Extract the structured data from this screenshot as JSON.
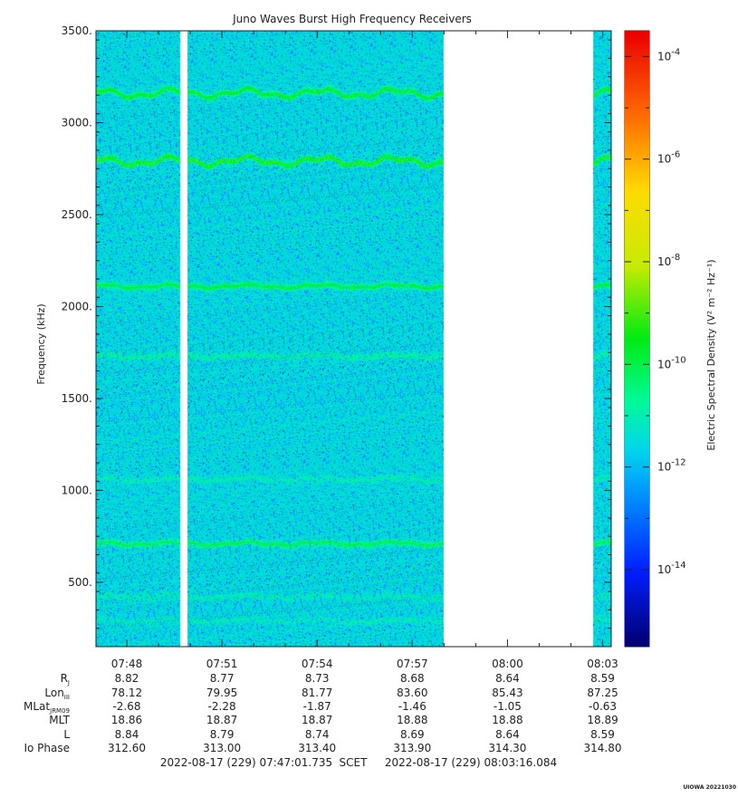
{
  "chart_data": {
    "type": "heatmap",
    "title": "Juno Waves Burst High Frequency Receivers",
    "ylabel": "Frequency (kHz)",
    "colorbar_label": "Electric Spectral Density (V² m⁻² Hz⁻¹)",
    "ylim": [
      150,
      3500
    ],
    "y_ticks": [
      500,
      1000,
      1500,
      2000,
      2500,
      3000,
      3500
    ],
    "y_tick_labels": [
      "500.",
      "1000.",
      "1500.",
      "2000.",
      "2500.",
      "3000.",
      "3500."
    ],
    "x_ticks": [
      "07:48",
      "07:51",
      "07:54",
      "07:57",
      "08:00",
      "08:03"
    ],
    "xlim_minutes": [
      47.03,
      63.27
    ],
    "x_tick_minutes": [
      48,
      51,
      54,
      57,
      60,
      63
    ],
    "colorbar": {
      "scale": "log",
      "range_exp": [
        -15.5,
        -3.5
      ],
      "tick_exponents": [
        -14,
        -12,
        -10,
        -8,
        -6,
        -4
      ],
      "tick_labels": [
        "-14",
        "-12",
        "-10",
        "-8",
        "-6",
        "-4"
      ],
      "tick_base": "10"
    },
    "background_density_exp": -11.5,
    "data_segments_minutes": [
      [
        47.03,
        49.68
      ],
      [
        49.9,
        58.0
      ],
      [
        62.7,
        63.27
      ]
    ],
    "emission_lines": [
      {
        "freq_khz": 3160,
        "density_exp": -9.5
      },
      {
        "freq_khz": 2790,
        "density_exp": -9.2
      },
      {
        "freq_khz": 2110,
        "density_exp": -9.8
      },
      {
        "freq_khz": 1730,
        "density_exp": -10.8
      },
      {
        "freq_khz": 1060,
        "density_exp": -11.0
      },
      {
        "freq_khz": 710,
        "density_exp": -10.0
      },
      {
        "freq_khz": 420,
        "density_exp": -11.0
      },
      {
        "freq_khz": 290,
        "density_exp": -11.1
      }
    ],
    "ephemeris": {
      "rows": [
        {
          "label": "R",
          "sub": "J",
          "values": [
            "8.82",
            "8.77",
            "8.73",
            "8.68",
            "8.64",
            "8.59"
          ]
        },
        {
          "label": "Lon",
          "sub": "III",
          "values": [
            "78.12",
            "79.95",
            "81.77",
            "83.60",
            "85.43",
            "87.25"
          ]
        },
        {
          "label": "MLat",
          "sub": "JRM09",
          "values": [
            "-2.68",
            "-2.28",
            "-1.87",
            "-1.46",
            "-1.05",
            "-0.63"
          ]
        },
        {
          "label": "MLT",
          "sub": "",
          "values": [
            "18.86",
            "18.87",
            "18.87",
            "18.88",
            "18.88",
            "18.89"
          ]
        },
        {
          "label": "L",
          "sub": "",
          "values": [
            "8.84",
            "8.79",
            "8.74",
            "8.69",
            "8.64",
            "8.59"
          ]
        },
        {
          "label": "Io Phase",
          "sub": "",
          "values": [
            "312.60",
            "313.00",
            "313.40",
            "313.90",
            "314.30",
            "314.80"
          ]
        }
      ]
    },
    "time_range": {
      "start": "2022-08-17 (229) 07:47:01.735",
      "frame": "SCET",
      "end": "2022-08-17 (229) 08:03:16.084"
    }
  },
  "credit": "UIOWA 20221030"
}
